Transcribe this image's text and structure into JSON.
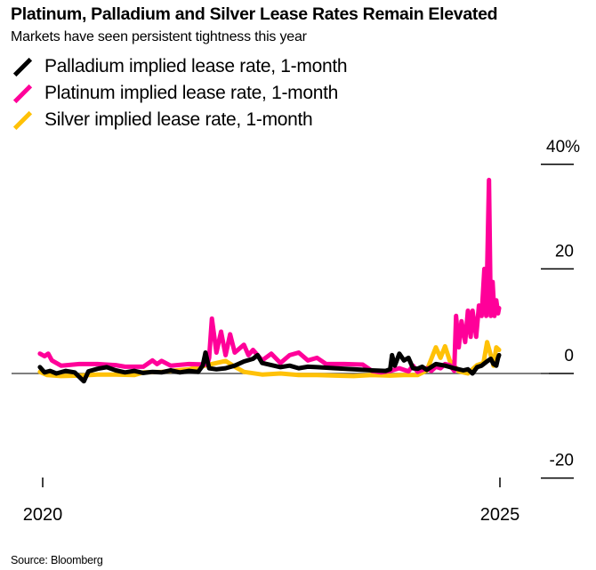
{
  "chart_data": {
    "type": "line",
    "title": "Platinum, Palladium and Silver Lease Rates Remain Elevated",
    "subtitle": "Markets have seen persistent tightness this year",
    "xlabel": "",
    "ylabel": "",
    "xlim": [
      2019.97,
      2025.0
    ],
    "ylim": [
      -20,
      40
    ],
    "y_ticks": [
      {
        "value": 40,
        "label": "40%"
      },
      {
        "value": 20,
        "label": "20"
      },
      {
        "value": 0,
        "label": "0"
      },
      {
        "value": -20,
        "label": "-20"
      }
    ],
    "x_ticks": [
      {
        "value": 2020,
        "label": "2020"
      },
      {
        "value": 2025,
        "label": "2025"
      }
    ],
    "grid": false,
    "zero_line": true,
    "legend_position": "top-left",
    "series": [
      {
        "name": "Silver implied lease rate, 1-month",
        "color": "#ffc107",
        "points": [
          [
            2019.97,
            0.3
          ],
          [
            2020.05,
            -0.3
          ],
          [
            2020.2,
            -0.5
          ],
          [
            2020.4,
            -0.4
          ],
          [
            2020.6,
            -0.2
          ],
          [
            2020.8,
            -0.2
          ],
          [
            2021.0,
            -0.3
          ],
          [
            2021.1,
            0.2
          ],
          [
            2021.3,
            0.3
          ],
          [
            2021.4,
            0.5
          ],
          [
            2021.6,
            0.8
          ],
          [
            2021.8,
            1.6
          ],
          [
            2022.0,
            2.4
          ],
          [
            2022.1,
            1.3
          ],
          [
            2022.2,
            0.3
          ],
          [
            2022.4,
            -0.2
          ],
          [
            2022.6,
            0.0
          ],
          [
            2022.8,
            -0.3
          ],
          [
            2023.0,
            -0.3
          ],
          [
            2023.2,
            -0.4
          ],
          [
            2023.4,
            -0.5
          ],
          [
            2023.6,
            -0.3
          ],
          [
            2023.8,
            -0.4
          ],
          [
            2023.95,
            -0.3
          ],
          [
            2024.1,
            -0.3
          ],
          [
            2024.2,
            0.6
          ],
          [
            2024.25,
            2.8
          ],
          [
            2024.3,
            5.0
          ],
          [
            2024.35,
            3.0
          ],
          [
            2024.4,
            5.2
          ],
          [
            2024.45,
            2.5
          ],
          [
            2024.55,
            0.4
          ],
          [
            2024.65,
            0.0
          ],
          [
            2024.75,
            1.6
          ],
          [
            2024.82,
            2.0
          ],
          [
            2024.86,
            6.0
          ],
          [
            2024.9,
            3.5
          ],
          [
            2024.93,
            1.5
          ],
          [
            2024.96,
            5.0
          ],
          [
            2024.99,
            4.5
          ]
        ]
      },
      {
        "name": "Platinum implied lease rate, 1-month",
        "color": "#ff0099",
        "points": [
          [
            2019.97,
            3.8
          ],
          [
            2020.02,
            3.3
          ],
          [
            2020.06,
            3.8
          ],
          [
            2020.1,
            2.5
          ],
          [
            2020.2,
            1.5
          ],
          [
            2020.4,
            1.8
          ],
          [
            2020.6,
            1.8
          ],
          [
            2020.8,
            1.6
          ],
          [
            2020.9,
            1.3
          ],
          [
            2021.1,
            1.3
          ],
          [
            2021.2,
            2.5
          ],
          [
            2021.25,
            1.8
          ],
          [
            2021.3,
            2.4
          ],
          [
            2021.4,
            1.5
          ],
          [
            2021.6,
            1.8
          ],
          [
            2021.8,
            1.7
          ],
          [
            2021.82,
            3.0
          ],
          [
            2021.85,
            10.5
          ],
          [
            2021.9,
            4.0
          ],
          [
            2021.95,
            8.0
          ],
          [
            2022.0,
            3.5
          ],
          [
            2022.05,
            7.5
          ],
          [
            2022.1,
            4.0
          ],
          [
            2022.2,
            5.5
          ],
          [
            2022.25,
            3.5
          ],
          [
            2022.3,
            4.5
          ],
          [
            2022.4,
            2.5
          ],
          [
            2022.5,
            3.8
          ],
          [
            2022.6,
            2.0
          ],
          [
            2022.7,
            3.5
          ],
          [
            2022.8,
            4.0
          ],
          [
            2022.9,
            2.5
          ],
          [
            2023.0,
            3.0
          ],
          [
            2023.1,
            1.8
          ],
          [
            2023.3,
            1.8
          ],
          [
            2023.5,
            1.7
          ],
          [
            2023.6,
            0.5
          ],
          [
            2023.7,
            0.2
          ],
          [
            2023.8,
            0.5
          ],
          [
            2023.9,
            1.0
          ],
          [
            2024.0,
            0.4
          ],
          [
            2024.05,
            1.5
          ],
          [
            2024.1,
            0.3
          ],
          [
            2024.2,
            1.0
          ],
          [
            2024.25,
            0.5
          ],
          [
            2024.3,
            1.3
          ],
          [
            2024.35,
            1.0
          ],
          [
            2024.4,
            1.8
          ],
          [
            2024.45,
            1.6
          ],
          [
            2024.5,
            0.5
          ],
          [
            2024.52,
            11.0
          ],
          [
            2024.55,
            5.0
          ],
          [
            2024.58,
            10.0
          ],
          [
            2024.62,
            6.0
          ],
          [
            2024.65,
            12.0
          ],
          [
            2024.68,
            7.0
          ],
          [
            2024.7,
            12.0
          ],
          [
            2024.74,
            7.0
          ],
          [
            2024.77,
            13.0
          ],
          [
            2024.8,
            11.0
          ],
          [
            2024.83,
            20.0
          ],
          [
            2024.85,
            11.0
          ],
          [
            2024.88,
            37.0
          ],
          [
            2024.9,
            11.0
          ],
          [
            2024.92,
            17.5
          ],
          [
            2024.94,
            11.0
          ],
          [
            2024.96,
            14.0
          ],
          [
            2024.98,
            11.5
          ],
          [
            2024.99,
            12.5
          ]
        ]
      },
      {
        "name": "Palladium implied lease rate, 1-month",
        "color": "#000000",
        "points": [
          [
            2019.97,
            1.2
          ],
          [
            2020.02,
            0.2
          ],
          [
            2020.08,
            0.5
          ],
          [
            2020.15,
            0.0
          ],
          [
            2020.25,
            0.5
          ],
          [
            2020.35,
            0.2
          ],
          [
            2020.45,
            -1.5
          ],
          [
            2020.5,
            0.4
          ],
          [
            2020.6,
            0.9
          ],
          [
            2020.7,
            1.2
          ],
          [
            2020.8,
            0.6
          ],
          [
            2020.9,
            0.2
          ],
          [
            2021.0,
            0.5
          ],
          [
            2021.1,
            0.1
          ],
          [
            2021.2,
            0.3
          ],
          [
            2021.3,
            0.2
          ],
          [
            2021.4,
            0.6
          ],
          [
            2021.5,
            0.2
          ],
          [
            2021.6,
            0.5
          ],
          [
            2021.7,
            0.3
          ],
          [
            2021.75,
            1.5
          ],
          [
            2021.78,
            4.0
          ],
          [
            2021.82,
            1.0
          ],
          [
            2021.9,
            0.8
          ],
          [
            2022.0,
            1.0
          ],
          [
            2022.1,
            1.5
          ],
          [
            2022.2,
            2.3
          ],
          [
            2022.3,
            2.8
          ],
          [
            2022.35,
            3.5
          ],
          [
            2022.4,
            2.0
          ],
          [
            2022.5,
            1.6
          ],
          [
            2022.6,
            1.2
          ],
          [
            2022.7,
            1.5
          ],
          [
            2022.8,
            1.0
          ],
          [
            2022.9,
            1.3
          ],
          [
            2023.0,
            1.2
          ],
          [
            2023.2,
            1.0
          ],
          [
            2023.4,
            0.8
          ],
          [
            2023.6,
            0.6
          ],
          [
            2023.75,
            0.5
          ],
          [
            2023.8,
            0.8
          ],
          [
            2023.82,
            3.5
          ],
          [
            2023.85,
            1.5
          ],
          [
            2023.9,
            3.8
          ],
          [
            2023.95,
            2.5
          ],
          [
            2024.0,
            3.0
          ],
          [
            2024.05,
            1.0
          ],
          [
            2024.1,
            0.9
          ],
          [
            2024.15,
            1.3
          ],
          [
            2024.2,
            0.7
          ],
          [
            2024.3,
            1.8
          ],
          [
            2024.4,
            1.5
          ],
          [
            2024.5,
            1.0
          ],
          [
            2024.6,
            0.6
          ],
          [
            2024.65,
            0.8
          ],
          [
            2024.7,
            0.0
          ],
          [
            2024.75,
            1.2
          ],
          [
            2024.8,
            1.5
          ],
          [
            2024.85,
            2.2
          ],
          [
            2024.9,
            2.8
          ],
          [
            2024.93,
            1.8
          ],
          [
            2024.96,
            1.5
          ],
          [
            2024.98,
            3.0
          ],
          [
            2024.99,
            3.5
          ]
        ]
      }
    ]
  },
  "header": {
    "title": "Platinum, Palladium and Silver Lease Rates Remain Elevated",
    "subtitle": "Markets have seen persistent tightness this year"
  },
  "legend": [
    {
      "label": "Palladium implied lease rate, 1-month",
      "color": "#000000"
    },
    {
      "label": "Platinum implied lease rate, 1-month",
      "color": "#ff0099"
    },
    {
      "label": "Silver implied lease rate, 1-month",
      "color": "#ffc107"
    }
  ],
  "footer": {
    "source": "Source: Bloomberg"
  }
}
